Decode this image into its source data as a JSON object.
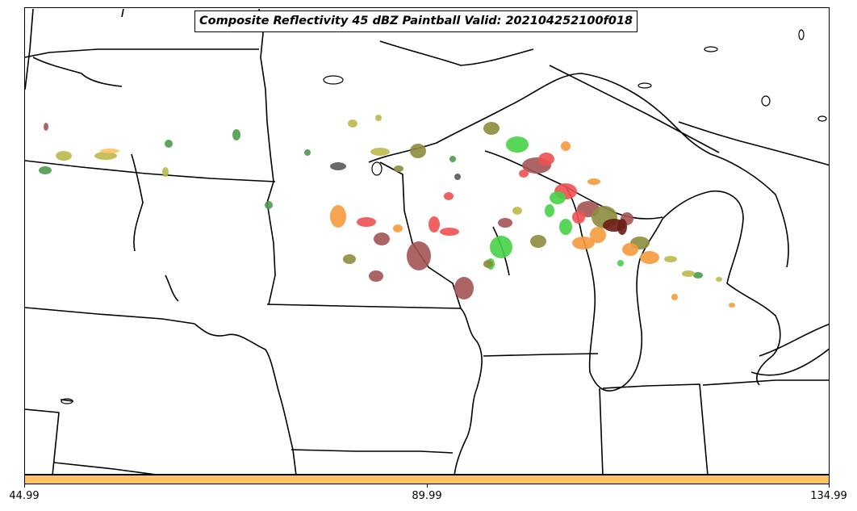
{
  "title": "Composite Reflectivity 45 dBZ Paintball Valid: 202104252100f018",
  "colorbar": {
    "color": "#ffc266",
    "tick_labels": [
      "44.99",
      "89.99",
      "134.99"
    ]
  },
  "paint_colors": {
    "red": "#f05050",
    "maroon": "#a45353",
    "bright_green": "#46d246",
    "olive": "#8c8c3c",
    "khaki": "#bcb84a",
    "orange": "#f59a3c",
    "light_orange": "#ffc266",
    "dark_gray": "#5a5a5a",
    "forest_green": "#4c9a4c",
    "dark_red": "#6a1d14"
  }
}
